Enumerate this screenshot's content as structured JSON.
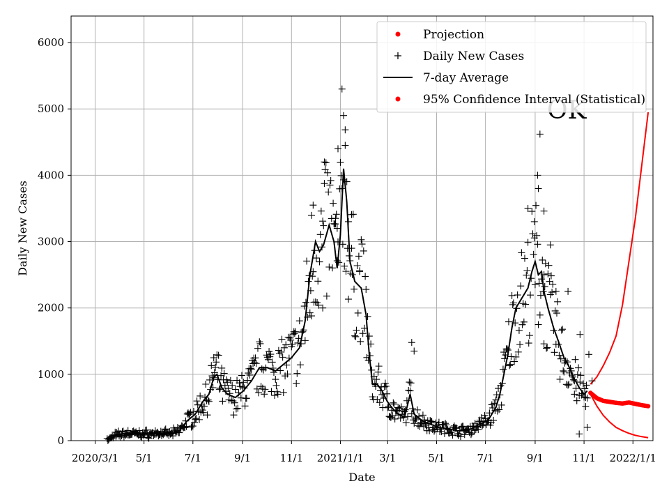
{
  "chart_data": {
    "type": "line",
    "title": "",
    "annotation": "OK",
    "xlabel": "Date",
    "ylabel": "Daily New Cases",
    "xlim": [
      -30,
      696
    ],
    "ylim": [
      0,
      6400
    ],
    "grid": true,
    "legend_position": "top-right",
    "x_ticks": [
      {
        "day": 0,
        "label": "2020/3/1"
      },
      {
        "day": 61,
        "label": "5/1"
      },
      {
        "day": 122,
        "label": "7/1"
      },
      {
        "day": 184,
        "label": "9/1"
      },
      {
        "day": 245,
        "label": "11/1"
      },
      {
        "day": 306,
        "label": "2021/1/1"
      },
      {
        "day": 365,
        "label": "3/1"
      },
      {
        "day": 426,
        "label": "5/1"
      },
      {
        "day": 487,
        "label": "7/1"
      },
      {
        "day": 549,
        "label": "9/1"
      },
      {
        "day": 610,
        "label": "11/1"
      },
      {
        "day": 671,
        "label": "2022/1/1"
      }
    ],
    "y_ticks": [
      0,
      1000,
      2000,
      3000,
      4000,
      5000,
      6000
    ],
    "legend": [
      {
        "label": "Projection",
        "marker": "dot",
        "color": "#ff0000"
      },
      {
        "label": "Daily New Cases",
        "marker": "plus",
        "color": "#000000"
      },
      {
        "label": "7-day Average",
        "marker": "line",
        "color": "#000000"
      },
      {
        "label": "95% Confidence Interval (Statistical)",
        "marker": "dot",
        "color": "#ff0000"
      }
    ],
    "average_anchors": [
      [
        15,
        0
      ],
      [
        25,
        80
      ],
      [
        40,
        110
      ],
      [
        60,
        100
      ],
      [
        80,
        110
      ],
      [
        95,
        100
      ],
      [
        105,
        150
      ],
      [
        115,
        300
      ],
      [
        125,
        400
      ],
      [
        135,
        600
      ],
      [
        142,
        700
      ],
      [
        148,
        950
      ],
      [
        152,
        1000
      ],
      [
        158,
        800
      ],
      [
        165,
        700
      ],
      [
        175,
        650
      ],
      [
        185,
        750
      ],
      [
        195,
        900
      ],
      [
        205,
        1100
      ],
      [
        215,
        1100
      ],
      [
        225,
        1050
      ],
      [
        235,
        1150
      ],
      [
        245,
        1250
      ],
      [
        255,
        1400
      ],
      [
        262,
        1800
      ],
      [
        268,
        2500
      ],
      [
        275,
        3000
      ],
      [
        280,
        2850
      ],
      [
        285,
        2950
      ],
      [
        292,
        3250
      ],
      [
        298,
        3000
      ],
      [
        302,
        2600
      ],
      [
        306,
        3100
      ],
      [
        310,
        4100
      ],
      [
        314,
        3600
      ],
      [
        318,
        2700
      ],
      [
        324,
        2400
      ],
      [
        332,
        2300
      ],
      [
        338,
        1900
      ],
      [
        342,
        1300
      ],
      [
        346,
        850
      ],
      [
        352,
        850
      ],
      [
        358,
        750
      ],
      [
        364,
        600
      ],
      [
        370,
        500
      ],
      [
        378,
        400
      ],
      [
        386,
        350
      ],
      [
        393,
        700
      ],
      [
        398,
        400
      ],
      [
        408,
        300
      ],
      [
        418,
        250
      ],
      [
        428,
        200
      ],
      [
        440,
        180
      ],
      [
        452,
        150
      ],
      [
        462,
        150
      ],
      [
        470,
        180
      ],
      [
        480,
        250
      ],
      [
        490,
        300
      ],
      [
        500,
        500
      ],
      [
        505,
        700
      ],
      [
        510,
        1000
      ],
      [
        515,
        1300
      ],
      [
        520,
        1700
      ],
      [
        525,
        2000
      ],
      [
        530,
        2100
      ],
      [
        535,
        2200
      ],
      [
        540,
        2300
      ],
      [
        545,
        2550
      ],
      [
        549,
        2700
      ],
      [
        553,
        2500
      ],
      [
        557,
        2550
      ],
      [
        560,
        2250
      ],
      [
        565,
        2000
      ],
      [
        572,
        1700
      ],
      [
        578,
        1500
      ],
      [
        585,
        1250
      ],
      [
        590,
        1150
      ],
      [
        597,
        950
      ],
      [
        604,
        800
      ],
      [
        610,
        700
      ],
      [
        614,
        750
      ]
    ],
    "daily_spikes": [
      [
        148,
        1250
      ],
      [
        308,
        5300
      ],
      [
        310,
        4900
      ],
      [
        312,
        4450
      ],
      [
        303,
        4400
      ],
      [
        300,
        3350
      ],
      [
        286,
        4200
      ],
      [
        272,
        3550
      ],
      [
        555,
        4620
      ],
      [
        552,
        4000
      ],
      [
        553,
        3800
      ],
      [
        548,
        3300
      ],
      [
        540,
        3500
      ],
      [
        560,
        3460
      ],
      [
        395,
        1480
      ],
      [
        398,
        1350
      ],
      [
        302,
        3200
      ],
      [
        316,
        3300
      ],
      [
        320,
        2900
      ],
      [
        330,
        2550
      ],
      [
        560,
        2500
      ],
      [
        568,
        2950
      ],
      [
        575,
        2250
      ],
      [
        590,
        2250
      ],
      [
        616,
        1300
      ],
      [
        612,
        650
      ],
      [
        620,
        900
      ],
      [
        598,
        700
      ],
      [
        605,
        1600
      ],
      [
        270,
        1880
      ],
      [
        284,
        2000
      ],
      [
        604,
        100
      ],
      [
        614,
        200
      ]
    ],
    "projection": {
      "days": [
        618,
        626,
        634,
        642,
        650,
        658,
        666,
        674,
        682,
        690
      ],
      "values": [
        720,
        640,
        600,
        585,
        570,
        560,
        575,
        555,
        535,
        520
      ]
    },
    "ci_upper": {
      "days": [
        618,
        626,
        634,
        642,
        650,
        658,
        666,
        674,
        682,
        690
      ],
      "values": [
        850,
        960,
        1130,
        1330,
        1580,
        2050,
        2700,
        3350,
        4150,
        4950
      ]
    },
    "ci_lower": {
      "days": [
        618,
        626,
        634,
        642,
        650,
        658,
        666,
        674,
        682,
        690
      ],
      "values": [
        700,
        520,
        380,
        280,
        200,
        150,
        110,
        80,
        60,
        45
      ]
    }
  }
}
